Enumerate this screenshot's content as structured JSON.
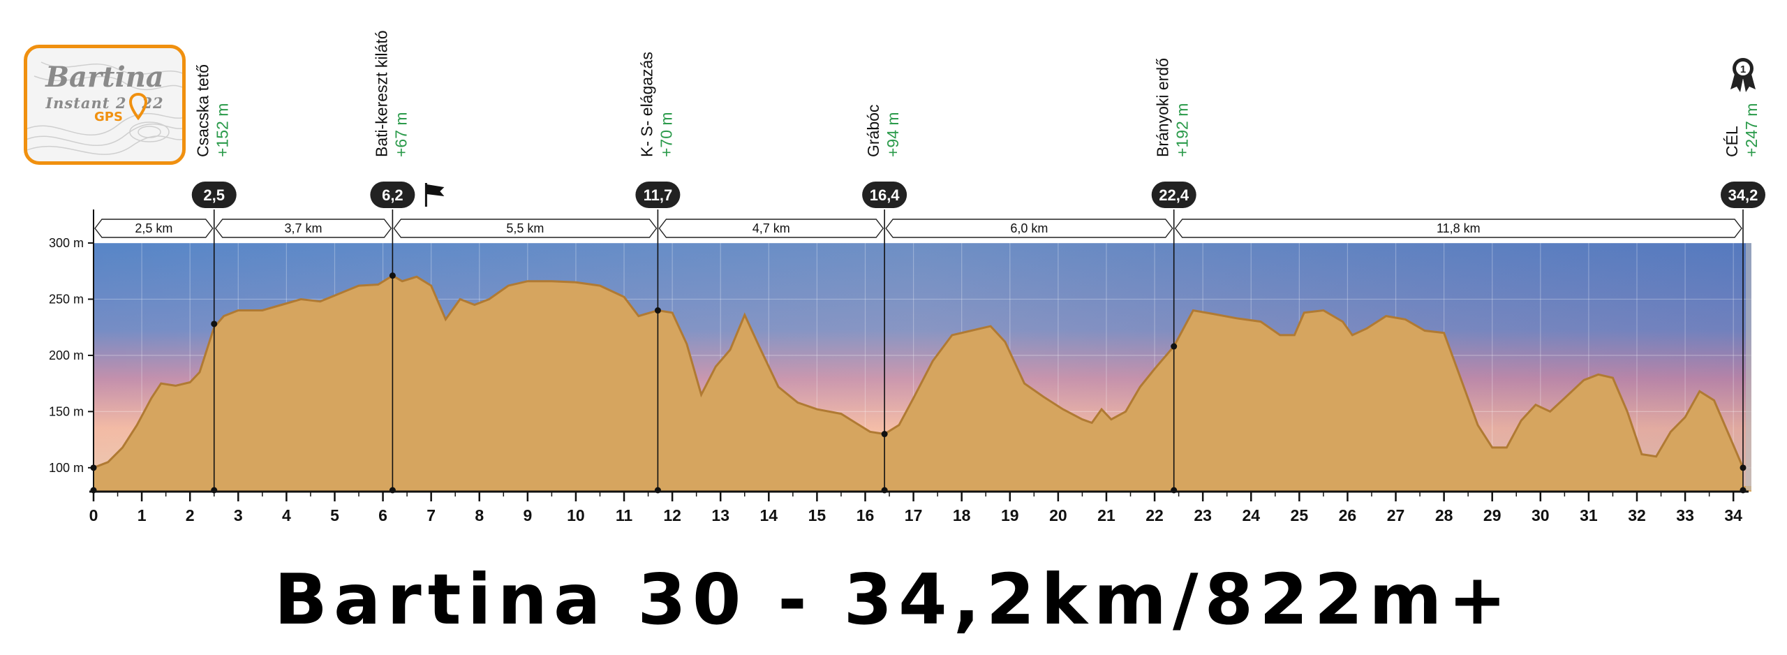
{
  "logo": {
    "title": "Bartina",
    "subtitle_left": "Instant 2",
    "subtitle_right": "22",
    "gps": "GPS",
    "accent": "#f0900f"
  },
  "title": "Bartina 30 - 34,2km/822m+",
  "chart_data": {
    "type": "area",
    "xlim": [
      0,
      34.2
    ],
    "ylim": [
      80,
      300
    ],
    "x_ticks": [
      0,
      1,
      2,
      3,
      4,
      5,
      6,
      7,
      8,
      9,
      10,
      11,
      12,
      13,
      14,
      15,
      16,
      17,
      18,
      19,
      20,
      21,
      22,
      23,
      24,
      25,
      26,
      27,
      28,
      29,
      30,
      31,
      32,
      33,
      34
    ],
    "y_ticks": [
      100,
      150,
      200,
      250,
      300
    ],
    "y_tick_labels": [
      "100 m",
      "150 m",
      "200 m",
      "250 m",
      "300 m"
    ],
    "grid": true,
    "fill_color": "#d6a55f",
    "line_color": "#b07a33",
    "profile": [
      [
        0,
        100
      ],
      [
        0.3,
        105
      ],
      [
        0.6,
        118
      ],
      [
        0.9,
        138
      ],
      [
        1.2,
        162
      ],
      [
        1.4,
        175
      ],
      [
        1.7,
        173
      ],
      [
        2.0,
        176
      ],
      [
        2.2,
        185
      ],
      [
        2.5,
        225
      ],
      [
        2.7,
        235
      ],
      [
        3.0,
        240
      ],
      [
        3.5,
        240
      ],
      [
        3.9,
        245
      ],
      [
        4.3,
        250
      ],
      [
        4.7,
        248
      ],
      [
        5.1,
        255
      ],
      [
        5.5,
        262
      ],
      [
        5.9,
        263
      ],
      [
        6.2,
        271
      ],
      [
        6.4,
        266
      ],
      [
        6.7,
        270
      ],
      [
        7.0,
        262
      ],
      [
        7.3,
        232
      ],
      [
        7.6,
        250
      ],
      [
        7.9,
        245
      ],
      [
        8.2,
        250
      ],
      [
        8.6,
        262
      ],
      [
        9.0,
        266
      ],
      [
        9.5,
        266
      ],
      [
        10.0,
        265
      ],
      [
        10.5,
        262
      ],
      [
        11.0,
        252
      ],
      [
        11.3,
        235
      ],
      [
        11.7,
        240
      ],
      [
        12.0,
        238
      ],
      [
        12.3,
        210
      ],
      [
        12.6,
        165
      ],
      [
        12.9,
        190
      ],
      [
        13.2,
        205
      ],
      [
        13.5,
        236
      ],
      [
        13.8,
        208
      ],
      [
        14.2,
        172
      ],
      [
        14.6,
        158
      ],
      [
        15.0,
        152
      ],
      [
        15.5,
        148
      ],
      [
        15.8,
        140
      ],
      [
        16.1,
        132
      ],
      [
        16.4,
        130
      ],
      [
        16.7,
        138
      ],
      [
        17.0,
        162
      ],
      [
        17.4,
        195
      ],
      [
        17.8,
        218
      ],
      [
        18.2,
        222
      ],
      [
        18.6,
        226
      ],
      [
        18.9,
        212
      ],
      [
        19.3,
        175
      ],
      [
        19.7,
        163
      ],
      [
        20.1,
        152
      ],
      [
        20.5,
        143
      ],
      [
        20.7,
        140
      ],
      [
        20.9,
        152
      ],
      [
        21.1,
        143
      ],
      [
        21.4,
        150
      ],
      [
        21.7,
        172
      ],
      [
        22.0,
        188
      ],
      [
        22.4,
        208
      ],
      [
        22.8,
        240
      ],
      [
        23.2,
        237
      ],
      [
        23.7,
        233
      ],
      [
        24.2,
        230
      ],
      [
        24.6,
        218
      ],
      [
        24.9,
        218
      ],
      [
        25.1,
        238
      ],
      [
        25.5,
        240
      ],
      [
        25.9,
        230
      ],
      [
        26.1,
        218
      ],
      [
        26.4,
        224
      ],
      [
        26.8,
        235
      ],
      [
        27.2,
        232
      ],
      [
        27.6,
        222
      ],
      [
        28.0,
        220
      ],
      [
        28.3,
        185
      ],
      [
        28.7,
        138
      ],
      [
        29.0,
        118
      ],
      [
        29.3,
        118
      ],
      [
        29.6,
        142
      ],
      [
        29.9,
        156
      ],
      [
        30.2,
        150
      ],
      [
        30.5,
        162
      ],
      [
        30.9,
        178
      ],
      [
        31.2,
        183
      ],
      [
        31.5,
        180
      ],
      [
        31.8,
        150
      ],
      [
        32.1,
        112
      ],
      [
        32.4,
        110
      ],
      [
        32.7,
        132
      ],
      [
        33.0,
        145
      ],
      [
        33.3,
        168
      ],
      [
        33.6,
        160
      ],
      [
        33.9,
        130
      ],
      [
        34.2,
        100
      ]
    ],
    "checkpoints": [
      {
        "km": 2.5,
        "label": "2,5",
        "name": "Csacska tető",
        "climb": "+152 m",
        "elev": 228
      },
      {
        "km": 6.2,
        "label": "6,2",
        "name": "Bati-kereszt kilátó",
        "climb": "+67 m",
        "elev": 271
      },
      {
        "km": 11.7,
        "label": "11,7",
        "name": "K- S- elágazás",
        "climb": "+70 m",
        "elev": 240
      },
      {
        "km": 16.4,
        "label": "16,4",
        "name": "Grábóc",
        "climb": "+94 m",
        "elev": 130
      },
      {
        "km": 22.4,
        "label": "22,4",
        "name": "Brányoki erdő",
        "climb": "+192 m",
        "elev": 208
      },
      {
        "km": 34.2,
        "label": "34,2",
        "name": "CÉL",
        "climb": "+247 m",
        "elev": 100
      }
    ],
    "segments": [
      {
        "from": 0,
        "to": 2.5,
        "label": "2,5 km"
      },
      {
        "from": 2.5,
        "to": 6.2,
        "label": "3,7 km"
      },
      {
        "from": 6.2,
        "to": 11.7,
        "label": "5,5 km"
      },
      {
        "from": 11.7,
        "to": 16.4,
        "label": "4,7 km"
      },
      {
        "from": 16.4,
        "to": 22.4,
        "label": "6,0 km"
      },
      {
        "from": 22.4,
        "to": 34.2,
        "label": "11,8 km"
      }
    ],
    "flag_km": 6.2,
    "finish_badge_number": "1",
    "climb_color": "#2a9a4a",
    "badge_color": "#222222"
  }
}
